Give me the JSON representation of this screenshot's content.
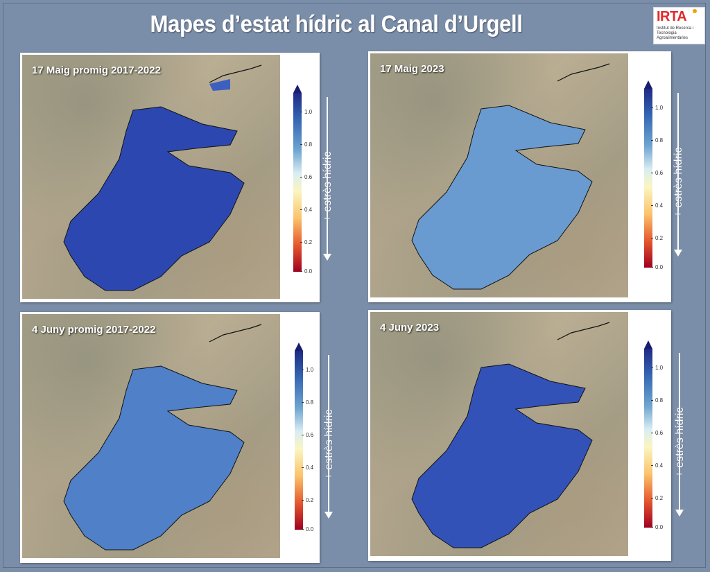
{
  "title": "Mapes d’estat hídric al Canal d’Urgell",
  "logo": {
    "name": "IRTA",
    "text": "Institut de Recerca i Tecnologia Agroalimentàries"
  },
  "colorbar": {
    "ticks": [
      "1.0",
      "0.8",
      "0.6",
      "0.4",
      "0.2",
      "0.0"
    ],
    "label": "+ estrès hídric",
    "colors": [
      "#1f2a84",
      "#3567b3",
      "#6fa5d0",
      "#d9edf3",
      "#faf6c0",
      "#fbc36c",
      "#e5582f",
      "#a00020"
    ]
  },
  "panels": [
    {
      "label": "17 Maig promig 2017-2022",
      "fill": "#2c48b0",
      "fill_light": "#4d74c4"
    },
    {
      "label": "17 Maig 2023",
      "fill": "#6a9bd0",
      "fill_light": "#a9cbe6"
    },
    {
      "label": "4 Juny promig 2017-2022",
      "fill": "#4f80c8",
      "fill_light": "#86b2dd"
    },
    {
      "label": "4 Juny 2023",
      "fill": "#3352b8",
      "fill_light": "#5e86c9"
    }
  ]
}
